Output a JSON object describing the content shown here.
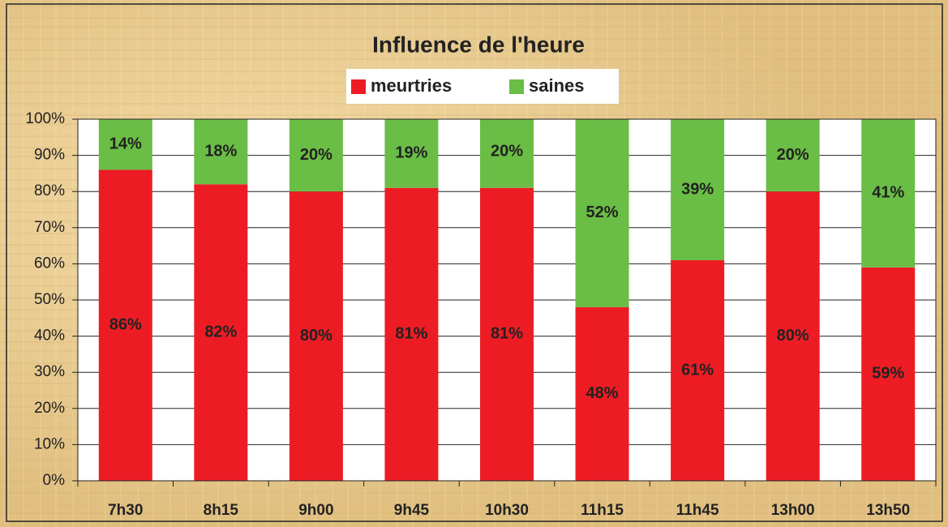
{
  "chart_data": {
    "type": "stacked_bar",
    "title": "Influence de l'heure",
    "categories": [
      "7h30",
      "8h15",
      "9h00",
      "9h45",
      "10h30",
      "11h15",
      "11h45",
      "13h00",
      "13h50"
    ],
    "series": [
      {
        "name": "meurtries",
        "color": "#ed1c24",
        "values": [
          86,
          82,
          80,
          81,
          81,
          48,
          61,
          80,
          59
        ],
        "value_labels": [
          "86%",
          "82%",
          "80%",
          "81%",
          "81%",
          "48%",
          "61%",
          "80%",
          "59%"
        ]
      },
      {
        "name": "saines",
        "color": "#6abd45",
        "values": [
          14,
          18,
          20,
          19,
          20,
          52,
          39,
          20,
          41
        ],
        "value_labels": [
          "14%",
          "18%",
          "20%",
          "19%",
          "20%",
          "52%",
          "39%",
          "20%",
          "41%"
        ]
      }
    ],
    "ylim": [
      0,
      100
    ],
    "yticks": [
      {
        "value": 0,
        "label": "0%"
      },
      {
        "value": 10,
        "label": "10%"
      },
      {
        "value": 20,
        "label": "20%"
      },
      {
        "value": 30,
        "label": "30%"
      },
      {
        "value": 40,
        "label": "40%"
      },
      {
        "value": 50,
        "label": "50%"
      },
      {
        "value": 60,
        "label": "60%"
      },
      {
        "value": 70,
        "label": "70%"
      },
      {
        "value": 80,
        "label": "80%"
      },
      {
        "value": 90,
        "label": "90%"
      },
      {
        "value": 100,
        "label": "100%"
      }
    ],
    "grid": true,
    "legend": "top"
  }
}
